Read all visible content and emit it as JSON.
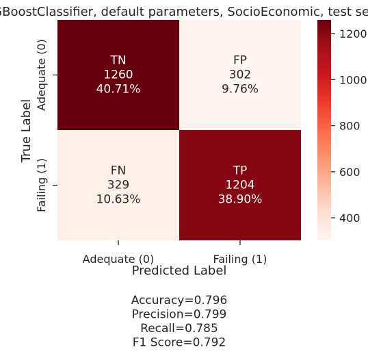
{
  "chart_data": {
    "type": "heatmap",
    "title": "XGBoostClassifier, default parameters, SocioEconomic, test set",
    "xlabel": "Predicted Label",
    "ylabel": "True Label",
    "x_categories": [
      "Adequate (0)",
      "Failing (1)"
    ],
    "y_categories": [
      "Adequate (0)",
      "Failing (1)"
    ],
    "cells": [
      [
        {
          "label": "TN",
          "value": 1260,
          "percent": "40.71%"
        },
        {
          "label": "FP",
          "value": 302,
          "percent": "9.76%"
        }
      ],
      [
        {
          "label": "FN",
          "value": 329,
          "percent": "10.63%"
        },
        {
          "label": "TP",
          "value": 1204,
          "percent": "38.90%"
        }
      ]
    ],
    "colorbar": {
      "ticks": [
        400,
        600,
        800,
        1000,
        1200
      ],
      "range": [
        302,
        1260
      ],
      "colormap": "Reds"
    },
    "metrics": [
      "Accuracy=0.796",
      "Precision=0.799",
      "Recall=0.785",
      "F1 Score=0.792"
    ],
    "grid": false
  }
}
